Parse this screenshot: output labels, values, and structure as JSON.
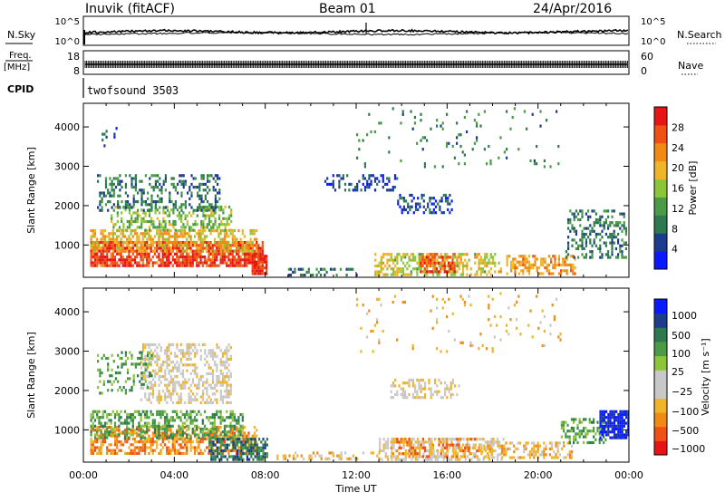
{
  "header": {
    "station": "Inuvik (fitACF)",
    "beam": "Beam 01",
    "date": "24/Apr/2016"
  },
  "summary_panels": {
    "nsky_label": "N.Sky",
    "nsearch_label": "N.Search",
    "freq_label_1": "Freq.",
    "freq_label_2": "[MHz]",
    "nave_label": "Nave",
    "cpid_label": "CPID",
    "cpid_value": "twofsound 3503",
    "noise_left_ticks": [
      "10^5",
      "10^0"
    ],
    "noise_right_ticks": [
      "10^5",
      "10^0"
    ],
    "freq_left_ticks": [
      "18",
      "8"
    ],
    "nave_right_ticks": [
      "60",
      "0"
    ]
  },
  "colors": {
    "power_scale": [
      "#0a1aff",
      "#1e3c8c",
      "#2e7a4e",
      "#4a9a46",
      "#8cc43a",
      "#f0b428",
      "#f08a14",
      "#f05014",
      "#e81414"
    ],
    "velocity_scale": [
      "#e81414",
      "#f05014",
      "#f08a14",
      "#f0b428",
      "#c8c8c8",
      "#c8c8c8",
      "#8cc43a",
      "#4a9a46",
      "#2e7a4e",
      "#1e3c8c",
      "#0a1aff"
    ]
  },
  "chart_data": [
    {
      "type": "heatmap",
      "name": "power",
      "ylabel": "Slant Range [km]",
      "y_ticks": [
        1000,
        2000,
        3000,
        4000
      ],
      "ylim": [
        180,
        4600
      ],
      "xlim_hours": [
        0,
        24
      ],
      "colorbar_label": "Power [dB]",
      "colorbar_ticks": [
        "4",
        "8",
        "12",
        "16",
        "20",
        "24",
        "28"
      ],
      "colorbar_range": [
        0,
        32
      ],
      "blobs": [
        {
          "t0": 0.3,
          "t1": 7.9,
          "r0": 500,
          "r1": 1100,
          "v": 28,
          "d": 0.8
        },
        {
          "t0": 0.3,
          "t1": 7.6,
          "r0": 850,
          "r1": 1400,
          "v": 20,
          "d": 0.6
        },
        {
          "t0": 1.2,
          "t1": 6.5,
          "r0": 1400,
          "r1": 2000,
          "v": 15,
          "d": 0.45
        },
        {
          "t0": 0.6,
          "t1": 6.0,
          "r0": 1900,
          "r1": 2800,
          "v": 9,
          "d": 0.35
        },
        {
          "t0": 0.8,
          "t1": 1.5,
          "r0": 3500,
          "r1": 4000,
          "v": 6,
          "d": 0.3
        },
        {
          "t0": 7.4,
          "t1": 8.1,
          "r0": 250,
          "r1": 750,
          "v": 29,
          "d": 0.9
        },
        {
          "t0": 9.0,
          "t1": 12.0,
          "r0": 230,
          "r1": 420,
          "v": 8,
          "d": 0.35
        },
        {
          "t0": 12.8,
          "t1": 18.4,
          "r0": 250,
          "r1": 800,
          "v": 18,
          "d": 0.55
        },
        {
          "t0": 14.8,
          "t1": 16.3,
          "r0": 350,
          "r1": 800,
          "v": 27,
          "d": 0.6
        },
        {
          "t0": 18.6,
          "t1": 21.6,
          "r0": 250,
          "r1": 750,
          "v": 22,
          "d": 0.55
        },
        {
          "t0": 21.2,
          "t1": 23.9,
          "r0": 700,
          "r1": 1900,
          "v": 9,
          "d": 0.4
        },
        {
          "t0": 10.6,
          "t1": 13.8,
          "r0": 2400,
          "r1": 2800,
          "v": 5,
          "d": 0.3
        },
        {
          "t0": 13.8,
          "t1": 16.2,
          "r0": 1800,
          "r1": 2300,
          "v": 5,
          "d": 0.35
        },
        {
          "t0": 12.0,
          "t1": 21.0,
          "r0": 3000,
          "r1": 4500,
          "v": 10,
          "d": 0.05
        }
      ]
    },
    {
      "type": "heatmap",
      "name": "velocity",
      "ylabel": "Slant Range [km]",
      "xlabel": "Time UT",
      "x_ticks": [
        "00:00",
        "04:00",
        "08:00",
        "12:00",
        "16:00",
        "20:00",
        "00:00"
      ],
      "y_ticks": [
        1000,
        2000,
        3000,
        4000
      ],
      "ylim": [
        180,
        4600
      ],
      "xlim_hours": [
        0,
        24
      ],
      "colorbar_label": "Velocity [m s⁻¹]",
      "colorbar_ticks": [
        "1000",
        "500",
        "100",
        "25",
        "−25",
        "−100",
        "−500",
        "−1000"
      ],
      "blobs": [
        {
          "t0": 0.3,
          "t1": 7.6,
          "r0": 400,
          "r1": 1100,
          "v": 2,
          "d": 0.6
        },
        {
          "t0": 0.3,
          "t1": 7.0,
          "r0": 800,
          "r1": 1500,
          "v": 7,
          "d": 0.5
        },
        {
          "t0": 2.5,
          "t1": 6.5,
          "r0": 1700,
          "r1": 3200,
          "v": 4,
          "d": 0.45
        },
        {
          "t0": 0.6,
          "t1": 3.0,
          "r0": 1900,
          "r1": 3000,
          "v": 7,
          "d": 0.25
        },
        {
          "t0": 5.5,
          "t1": 8.1,
          "r0": 250,
          "r1": 800,
          "v": 8,
          "d": 0.6
        },
        {
          "t0": 8.5,
          "t1": 13.0,
          "r0": 230,
          "r1": 450,
          "v": 3,
          "d": 0.3
        },
        {
          "t0": 13.0,
          "t1": 18.5,
          "r0": 250,
          "r1": 800,
          "v": 4,
          "d": 0.5
        },
        {
          "t0": 13.5,
          "t1": 17.5,
          "r0": 300,
          "r1": 800,
          "v": 2,
          "d": 0.35
        },
        {
          "t0": 17.5,
          "t1": 21.5,
          "r0": 300,
          "r1": 700,
          "v": 3,
          "d": 0.5
        },
        {
          "t0": 21.0,
          "t1": 23.0,
          "r0": 700,
          "r1": 1300,
          "v": 7,
          "d": 0.4
        },
        {
          "t0": 22.7,
          "t1": 24.0,
          "r0": 800,
          "r1": 1500,
          "v": 10,
          "d": 0.75
        },
        {
          "t0": 13.5,
          "t1": 16.5,
          "r0": 1800,
          "r1": 2300,
          "v": 4,
          "d": 0.4
        },
        {
          "t0": 12.0,
          "t1": 21.0,
          "r0": 3000,
          "r1": 4500,
          "v": 3,
          "d": 0.05
        }
      ]
    }
  ]
}
